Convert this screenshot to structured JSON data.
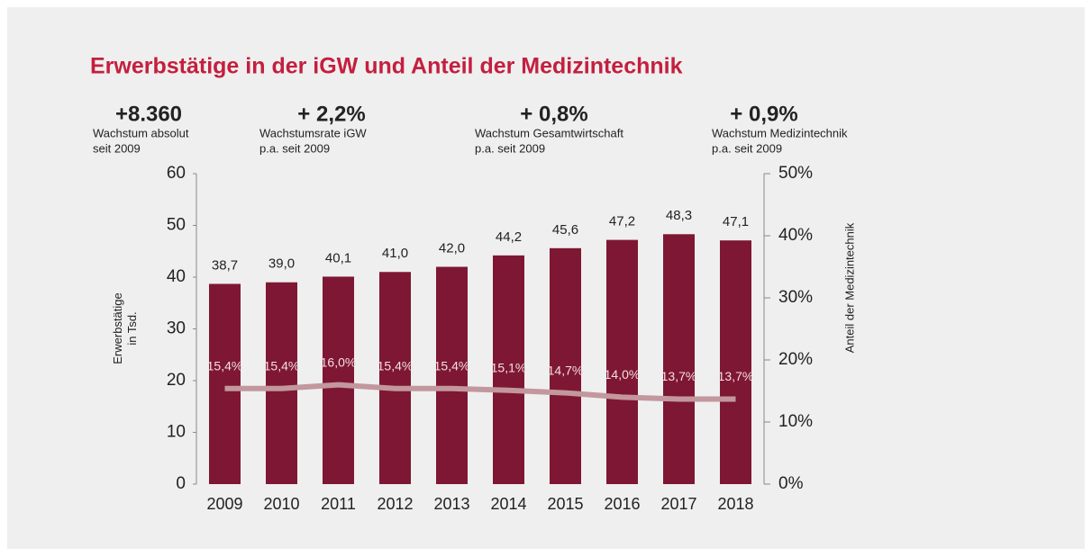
{
  "chart_data": {
    "type": "bar",
    "title": "Erwerbstätige in der iGW und Anteil der Medizintechnik",
    "stats": [
      {
        "value": "+8.360",
        "lines": [
          "Wachstum absolut",
          "seit 2009"
        ]
      },
      {
        "value": "+ 2,2%",
        "lines": [
          "Wachstumsrate iGW",
          "p.a. seit 2009"
        ]
      },
      {
        "value": "+ 0,8%",
        "lines": [
          "Wachstum Gesamtwirtschaft",
          "p.a. seit 2009"
        ]
      },
      {
        "value": "+ 0,9%",
        "lines": [
          "Wachstum Medizintechnik",
          "p.a. seit 2009"
        ]
      }
    ],
    "ylabel": [
      "Erwerbstätige",
      "in Tsd."
    ],
    "y2label": "Anteil der Medizintechnik",
    "categories": [
      "2009",
      "2010",
      "2011",
      "2012",
      "2013",
      "2014",
      "2015",
      "2016",
      "2017",
      "2018"
    ],
    "series": [
      {
        "type": "bar",
        "color": "#7e1733",
        "values": [
          38.7,
          39.0,
          40.1,
          41.0,
          42.0,
          44.2,
          45.6,
          47.2,
          48.3,
          47.1
        ],
        "value_labels": [
          "38,7",
          "39,0",
          "40,1",
          "41,0",
          "42,0",
          "44,2",
          "45,6",
          "47,2",
          "48,3",
          "47,1"
        ]
      },
      {
        "type": "line",
        "axis": "y2",
        "color": "#c3979e",
        "values": [
          15.4,
          15.4,
          16.0,
          15.4,
          15.4,
          15.1,
          14.7,
          14.0,
          13.7,
          13.7
        ],
        "value_labels": [
          "15,4%",
          "15,4%",
          "16,0%",
          "15,4%",
          "15,4%",
          "15,1%",
          "14,7%",
          "14,0%",
          "13,7%",
          "13,7%"
        ]
      }
    ],
    "ylim": [
      0,
      60
    ],
    "yticks": [
      0,
      10,
      20,
      30,
      40,
      50,
      60
    ],
    "y2lim": [
      0,
      50
    ],
    "y2ticks": [
      {
        "value": 0,
        "label": "0%"
      },
      {
        "value": 10,
        "label": "10%"
      },
      {
        "value": 20,
        "label": "20%"
      },
      {
        "value": 30,
        "label": "30%"
      },
      {
        "value": 40,
        "label": "40%"
      },
      {
        "value": 50,
        "label": "50%"
      }
    ]
  }
}
